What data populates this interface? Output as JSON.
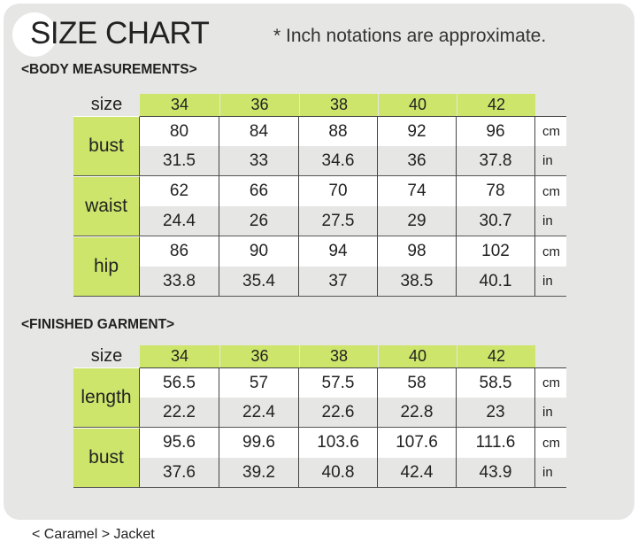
{
  "header": {
    "title": "SIZE CHART",
    "note": "* Inch notations are approximate."
  },
  "body_section": {
    "heading": "<BODY MEASUREMENTS>",
    "size_label": "size",
    "sizes": [
      "34",
      "36",
      "38",
      "40",
      "42"
    ],
    "rows": [
      {
        "label": "bust",
        "cm": [
          "80",
          "84",
          "88",
          "92",
          "96"
        ],
        "in": [
          "31.5",
          "33",
          "34.6",
          "36",
          "37.8"
        ]
      },
      {
        "label": "waist",
        "cm": [
          "62",
          "66",
          "70",
          "74",
          "78"
        ],
        "in": [
          "24.4",
          "26",
          "27.5",
          "29",
          "30.7"
        ]
      },
      {
        "label": "hip",
        "cm": [
          "86",
          "90",
          "94",
          "98",
          "102"
        ],
        "in": [
          "33.8",
          "35.4",
          "37",
          "38.5",
          "40.1"
        ]
      }
    ]
  },
  "garment_section": {
    "heading": "<FINISHED GARMENT>",
    "size_label": "size",
    "sizes": [
      "34",
      "36",
      "38",
      "40",
      "42"
    ],
    "rows": [
      {
        "label": "length",
        "cm": [
          "56.5",
          "57",
          "57.5",
          "58",
          "58.5"
        ],
        "in": [
          "22.2",
          "22.4",
          "22.6",
          "22.8",
          "23"
        ]
      },
      {
        "label": "bust",
        "cm": [
          "95.6",
          "99.6",
          "103.6",
          "107.6",
          "111.6"
        ],
        "in": [
          "37.6",
          "39.2",
          "40.8",
          "42.4",
          "43.9"
        ]
      }
    ]
  },
  "units": {
    "cm": "cm",
    "in": "in"
  },
  "footer": {
    "caption": "< Caramel > Jacket"
  },
  "colors": {
    "accent_green": "#cde56b",
    "panel_gray": "#e6e6e4"
  }
}
